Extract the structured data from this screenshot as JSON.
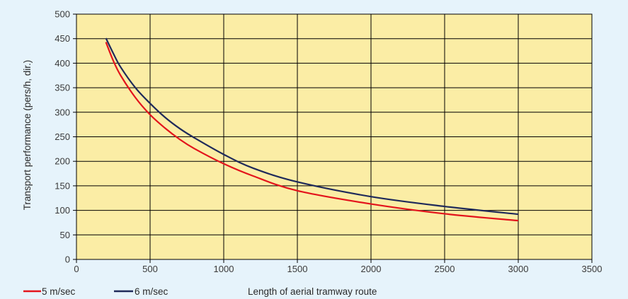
{
  "chart_data": {
    "type": "line",
    "xlabel": "Length of aerial tramway route",
    "ylabel": "Transport performance (pers/h, dir.)",
    "xlim": [
      0,
      3500
    ],
    "ylim": [
      0,
      500
    ],
    "xticks": [
      0,
      500,
      1000,
      1500,
      2000,
      2500,
      3000,
      3500
    ],
    "yticks": [
      0,
      50,
      100,
      150,
      200,
      250,
      300,
      350,
      400,
      450,
      500
    ],
    "grid": true,
    "legend_position": "bottom-left",
    "plot_background": "#fbeda5",
    "series": [
      {
        "name": "5 m/sec",
        "color": "#e3141c",
        "x": [
          200,
          250,
          300,
          400,
          500,
          600,
          700,
          800,
          1000,
          1200,
          1500,
          2000,
          2500,
          3000
        ],
        "y": [
          443,
          405,
          375,
          330,
          295,
          268,
          245,
          226,
          195,
          170,
          140,
          113,
          93,
          79
        ]
      },
      {
        "name": "6 m/sec",
        "color": "#1f2a5a",
        "x": [
          200,
          250,
          300,
          400,
          500,
          600,
          700,
          800,
          1000,
          1200,
          1500,
          2000,
          2500,
          3000
        ],
        "y": [
          451,
          420,
          392,
          350,
          318,
          290,
          267,
          248,
          214,
          186,
          158,
          128,
          108,
          92
        ]
      }
    ]
  }
}
